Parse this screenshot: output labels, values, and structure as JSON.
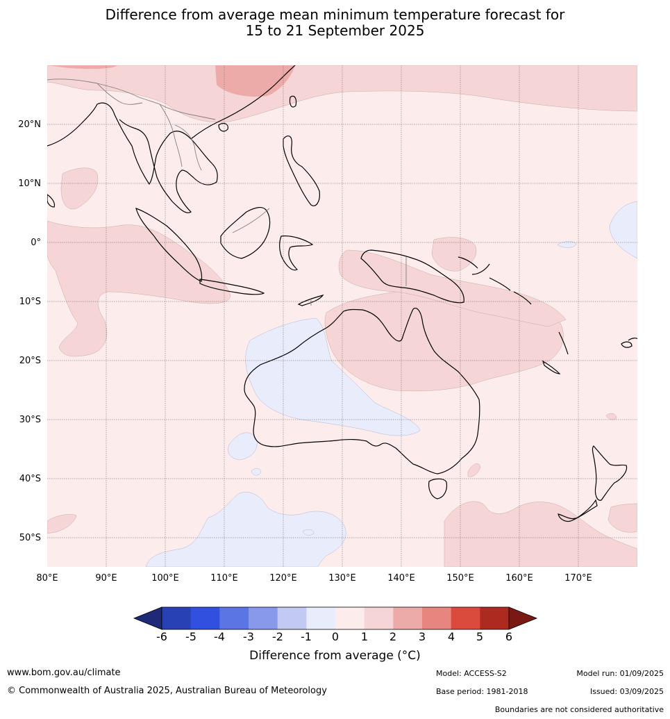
{
  "title": {
    "line1": "Difference from average mean minimum temperature forecast for",
    "line2": "15 to 21 September 2025"
  },
  "map": {
    "lon_ticks": [
      "80°E",
      "90°E",
      "100°E",
      "110°E",
      "120°E",
      "130°E",
      "140°E",
      "150°E",
      "160°E",
      "170°E"
    ],
    "lat_ticks": [
      "20°N",
      "10°N",
      "0°",
      "10°S",
      "20°S",
      "30°S",
      "40°S",
      "50°S"
    ],
    "extent": {
      "lon_min": 80,
      "lon_max": 180,
      "lat_min": -55,
      "lat_max": 30
    }
  },
  "colorbar": {
    "labels": [
      "-6",
      "-5",
      "-4",
      "-3",
      "-2",
      "-1",
      "0",
      "1",
      "2",
      "3",
      "4",
      "5",
      "6"
    ],
    "colors": [
      "#1e2a78",
      "#2841b5",
      "#3150e0",
      "#5b75e5",
      "#8899ec",
      "#c2c9f3",
      "#e8ecfb",
      "#fceceb",
      "#f5d5d5",
      "#ecaba8",
      "#e6867e",
      "#db4b3d",
      "#ad2a21",
      "#7a1914"
    ],
    "title": "Difference from average (°C)"
  },
  "footer": {
    "url": "www.bom.gov.au/climate",
    "copyright": "© Commonwealth of Australia 2025, Australian Bureau of Meteorology",
    "model": "Model: ACCESS-S2",
    "base_period": "Base period: 1981-2018",
    "model_run": "Model run: 01/09/2025",
    "issued": "Issued: 03/09/2025",
    "disclaimer": "Boundaries are not considered authoritative"
  }
}
